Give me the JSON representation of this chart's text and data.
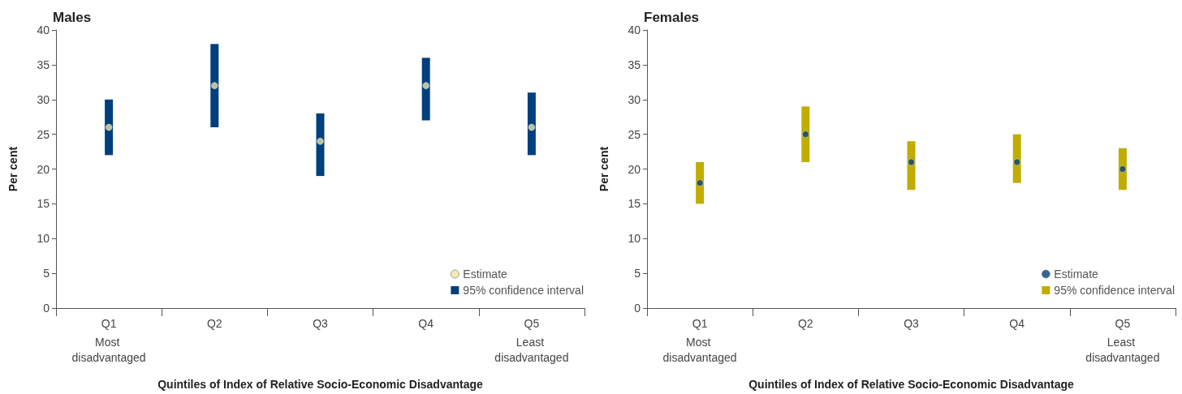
{
  "chart_data": [
    {
      "type": "bar",
      "title": "Males",
      "xlabel": "Quintiles of Index of Relative Socio-Economic Disadvantage",
      "ylabel": "Per cent",
      "categories": [
        "Q1",
        "Q2",
        "Q3",
        "Q4",
        "Q5"
      ],
      "ylim": [
        0,
        40
      ],
      "yticks": [
        0,
        5,
        10,
        15,
        20,
        25,
        30,
        35,
        40
      ],
      "legend": "bottom right",
      "marker": "circle",
      "annotations": [
        "Most disadvantaged",
        "Least disadvantaged"
      ],
      "series": [
        {
          "name": "Estimate",
          "type": "scatter",
          "color": "#efe3a3",
          "x": [
            "Q1",
            "Q2",
            "Q3",
            "Q4",
            "Q5"
          ],
          "values": [
            26,
            32,
            24,
            32,
            26
          ]
        },
        {
          "name": "95% confidence interval",
          "color": "#003f7d",
          "base": [
            22,
            26,
            19,
            27,
            22
          ],
          "values": [
            8,
            12,
            9,
            9,
            9
          ]
        }
      ]
    },
    {
      "type": "bar",
      "title": "Females",
      "xlabel": "Quintiles of Index of Relative Socio-Economic Disadvantage",
      "ylabel": "Per cent",
      "categories": [
        "Q1",
        "Q2",
        "Q3",
        "Q4",
        "Q5"
      ],
      "ylim": [
        0,
        40
      ],
      "yticks": [
        0,
        5,
        10,
        15,
        20,
        25,
        30,
        35,
        40
      ],
      "legend": "bottom right",
      "marker": "circle",
      "annotations": [
        "Most disadvantaged",
        "Least disadvantaged"
      ],
      "series": [
        {
          "name": "Estimate",
          "type": "scatter",
          "color": "#003f7d",
          "x": [
            "Q1",
            "Q2",
            "Q3",
            "Q4",
            "Q5"
          ],
          "values": [
            18,
            25,
            21,
            21,
            20
          ]
        },
        {
          "name": "95% confidence interval",
          "color": "#c0ad00",
          "base": [
            15,
            21,
            17,
            18,
            17
          ],
          "values": [
            6,
            8,
            7,
            7,
            6
          ]
        }
      ]
    }
  ]
}
